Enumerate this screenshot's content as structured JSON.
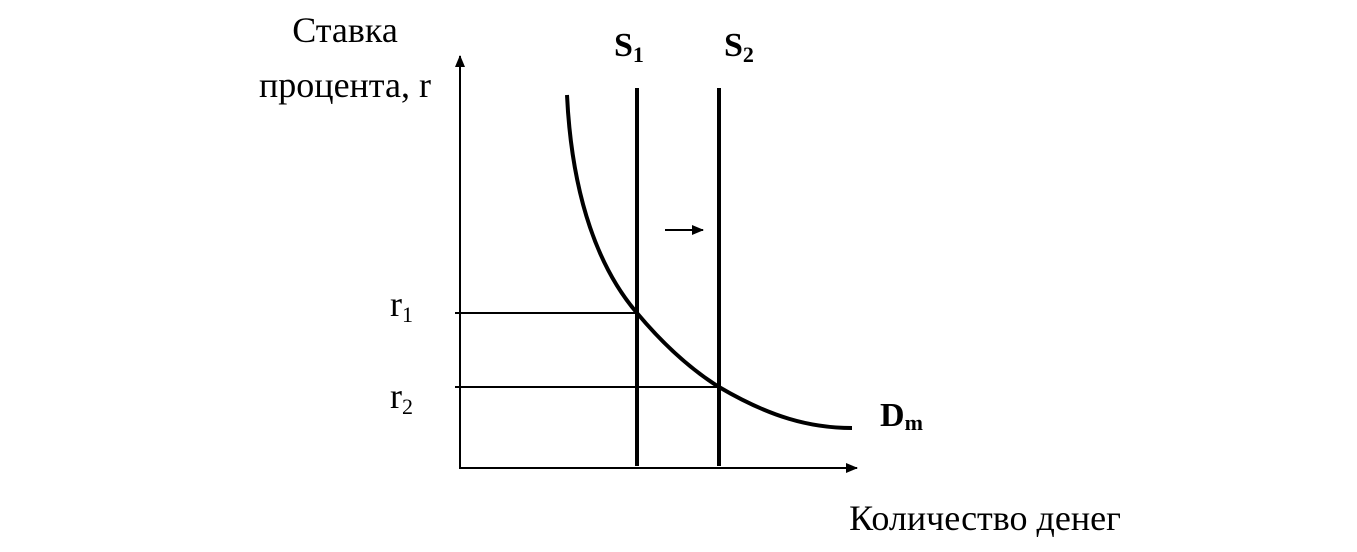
{
  "axes": {
    "y_label": [
      "Ставка",
      "процента, r"
    ],
    "x_label": "Количество денег"
  },
  "curves": {
    "s1": {
      "main": "S",
      "sub": "1"
    },
    "s2": {
      "main": "S",
      "sub": "2"
    },
    "dm": {
      "main": "D",
      "sub": "m"
    }
  },
  "levels": {
    "r1": {
      "main": "r",
      "sub": "1"
    },
    "r2": {
      "main": "r",
      "sub": "2"
    }
  }
}
